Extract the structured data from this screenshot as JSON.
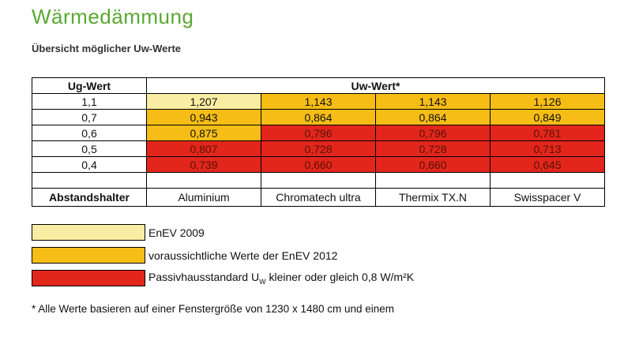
{
  "header": {
    "title": "Wärmedämmung",
    "subtitle": "Übersicht möglicher Uw-Werte"
  },
  "table": {
    "head": [
      "Ug-Wert",
      "Uw-Wert*"
    ],
    "rows": [
      {
        "ug": "1,1",
        "uw": [
          {
            "text": "1,207",
            "color": "#f9eda3"
          },
          {
            "text": "1,143",
            "color": "#f6bd17"
          },
          {
            "text": "1,143",
            "color": "#f6bd17"
          },
          {
            "text": "1,126",
            "color": "#f6bd17"
          }
        ]
      },
      {
        "ug": "0,7",
        "uw": [
          {
            "text": "0,943",
            "color": "#f6bd17"
          },
          {
            "text": "0,864",
            "color": "#f6bd17"
          },
          {
            "text": "0,864",
            "color": "#f6bd17"
          },
          {
            "text": "0,849",
            "color": "#f6bd17"
          }
        ]
      },
      {
        "ug": "0,6",
        "uw": [
          {
            "text": "0,875",
            "color": "#f6bd17"
          },
          {
            "text": "0,796",
            "color": "#e2261b"
          },
          {
            "text": "0,796",
            "color": "#e2261b"
          },
          {
            "text": "0,781",
            "color": "#e2261b"
          }
        ]
      },
      {
        "ug": "0,5",
        "uw": [
          {
            "text": "0,807",
            "color": "#e2261b"
          },
          {
            "text": "0,728",
            "color": "#e2261b"
          },
          {
            "text": "0,728",
            "color": "#e2261b"
          },
          {
            "text": "0,713",
            "color": "#e2261b"
          }
        ]
      },
      {
        "ug": "0,4",
        "uw": [
          {
            "text": "0,739",
            "color": "#e2261b"
          },
          {
            "text": "0,660",
            "color": "#e2261b"
          },
          {
            "text": "0,660",
            "color": "#e2261b"
          },
          {
            "text": "0,645",
            "color": "#e2261b"
          }
        ]
      }
    ],
    "spacer_label": "Abstandshalter",
    "spacers": [
      "Aluminium",
      "Chromatech ultra",
      "Thermix TX.N",
      "Swisspacer V"
    ]
  },
  "legend": [
    {
      "color": "#f9eda3",
      "text": [
        "EnEV 2009"
      ]
    },
    {
      "color": "#f6bd17",
      "text": [
        "voraussichtliche Werte der EnEV 2012"
      ]
    },
    {
      "color": "#e2261b",
      "text": [
        "Passivhausstandard U",
        "W",
        " kleiner oder gleich 0,8 W/m²K"
      ]
    }
  ],
  "footnote": "* Alle Werte basieren auf einer Fenstergröße von 1230 x 1480 cm und einem"
}
